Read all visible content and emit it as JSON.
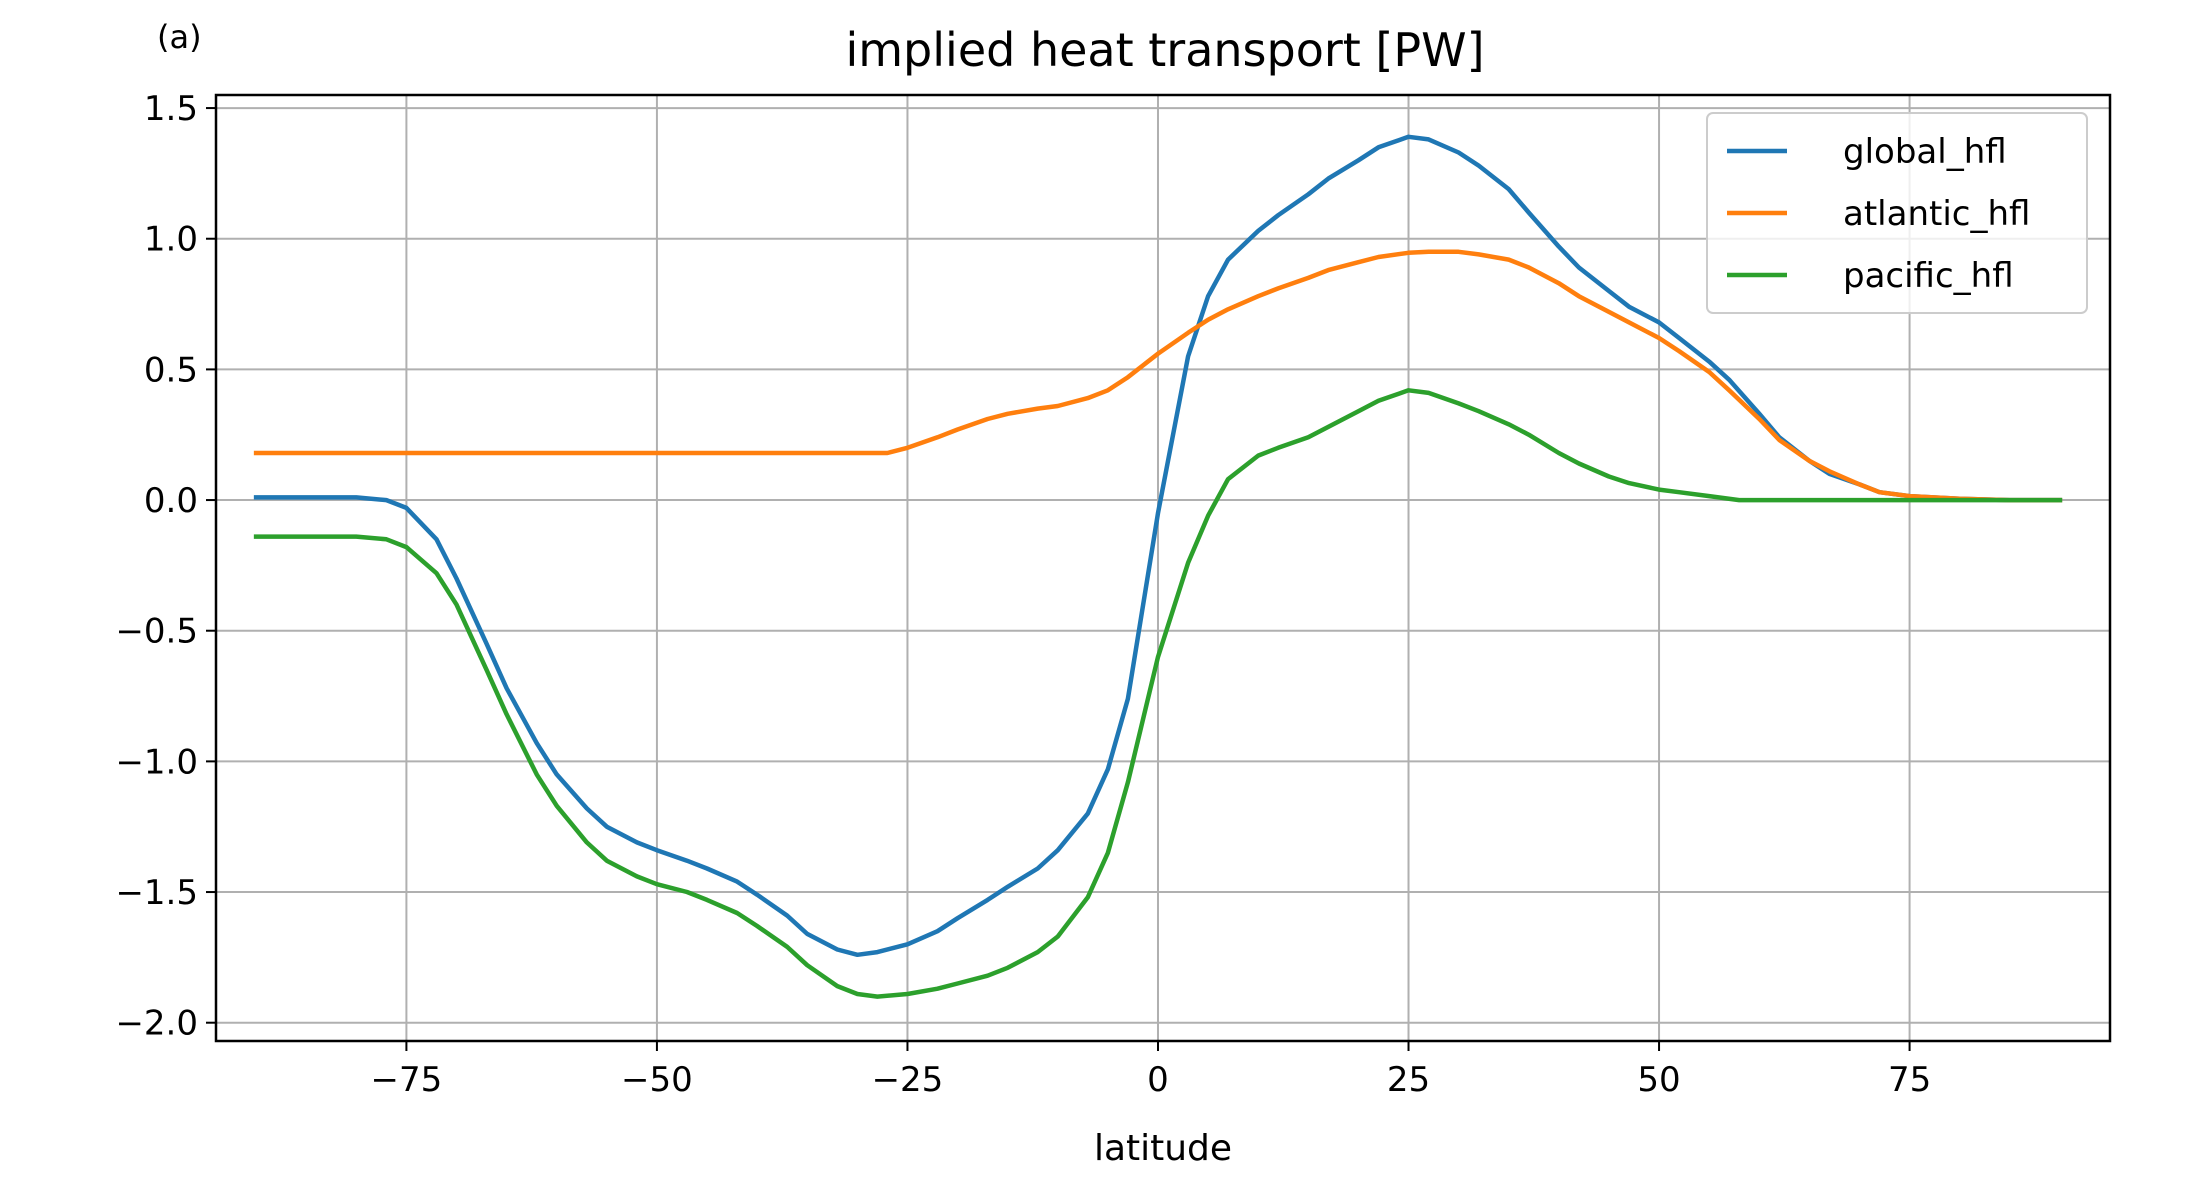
{
  "panel_label": "(a)",
  "chart_data": {
    "type": "line",
    "title": "implied heat transport [PW]",
    "xlabel": "latitude",
    "ylabel": "",
    "xlim": [
      -94,
      95
    ],
    "ylim": [
      -2.07,
      1.55
    ],
    "xticks": [
      -75,
      -50,
      -25,
      0,
      25,
      50,
      75
    ],
    "xtick_labels": [
      "−75",
      "−50",
      "−25",
      "0",
      "25",
      "50",
      "75"
    ],
    "yticks": [
      -2.0,
      -1.5,
      -1.0,
      -0.5,
      0.0,
      0.5,
      1.0,
      1.5
    ],
    "ytick_labels": [
      "−2.0",
      "−1.5",
      "−1.0",
      "−0.5",
      "0.0",
      "0.5",
      "1.0",
      "1.5"
    ],
    "grid": true,
    "legend_position": "top-right",
    "series": [
      {
        "name": "global_hfl",
        "color": "#1f77b4",
        "x": [
          -90,
          -85,
          -80,
          -77,
          -75,
          -72,
          -70,
          -67,
          -65,
          -62,
          -60,
          -57,
          -55,
          -52,
          -50,
          -47,
          -45,
          -42,
          -40,
          -37,
          -35,
          -32,
          -30,
          -28,
          -25,
          -22,
          -20,
          -17,
          -15,
          -12,
          -10,
          -7,
          -5,
          -3,
          0,
          3,
          5,
          7,
          10,
          12,
          15,
          17,
          20,
          22,
          25,
          27,
          30,
          32,
          35,
          37,
          40,
          42,
          45,
          47,
          50,
          52,
          55,
          57,
          60,
          62,
          65,
          67,
          70,
          72,
          75,
          80,
          85,
          90
        ],
        "y": [
          0.01,
          0.01,
          0.01,
          0.0,
          -0.03,
          -0.15,
          -0.3,
          -0.55,
          -0.72,
          -0.93,
          -1.05,
          -1.18,
          -1.25,
          -1.31,
          -1.34,
          -1.38,
          -1.41,
          -1.46,
          -1.51,
          -1.59,
          -1.66,
          -1.72,
          -1.74,
          -1.73,
          -1.7,
          -1.65,
          -1.6,
          -1.53,
          -1.48,
          -1.41,
          -1.34,
          -1.2,
          -1.03,
          -0.76,
          -0.05,
          0.55,
          0.78,
          0.92,
          1.03,
          1.09,
          1.17,
          1.23,
          1.3,
          1.35,
          1.39,
          1.38,
          1.33,
          1.28,
          1.19,
          1.1,
          0.97,
          0.89,
          0.8,
          0.74,
          0.68,
          0.62,
          0.53,
          0.46,
          0.33,
          0.24,
          0.15,
          0.1,
          0.06,
          0.03,
          0.015,
          0.005,
          0.0,
          0.0
        ]
      },
      {
        "name": "atlantic_hfl",
        "color": "#ff7f0e",
        "x": [
          -90,
          -80,
          -70,
          -60,
          -50,
          -40,
          -30,
          -27,
          -25,
          -22,
          -20,
          -17,
          -15,
          -12,
          -10,
          -7,
          -5,
          -3,
          0,
          3,
          5,
          7,
          10,
          12,
          15,
          17,
          20,
          22,
          25,
          27,
          30,
          32,
          35,
          37,
          40,
          42,
          45,
          47,
          50,
          52,
          55,
          57,
          60,
          62,
          65,
          67,
          70,
          72,
          75,
          80,
          85,
          90
        ],
        "y": [
          0.18,
          0.18,
          0.18,
          0.18,
          0.18,
          0.18,
          0.18,
          0.18,
          0.2,
          0.24,
          0.27,
          0.31,
          0.33,
          0.35,
          0.36,
          0.39,
          0.42,
          0.47,
          0.56,
          0.64,
          0.69,
          0.73,
          0.78,
          0.81,
          0.85,
          0.88,
          0.91,
          0.93,
          0.946,
          0.95,
          0.95,
          0.94,
          0.92,
          0.89,
          0.83,
          0.78,
          0.72,
          0.68,
          0.62,
          0.57,
          0.49,
          0.42,
          0.31,
          0.23,
          0.15,
          0.11,
          0.06,
          0.03,
          0.015,
          0.005,
          0.0,
          0.0
        ]
      },
      {
        "name": "pacific_hfl",
        "color": "#2ca02c",
        "x": [
          -90,
          -85,
          -80,
          -77,
          -75,
          -72,
          -70,
          -67,
          -65,
          -62,
          -60,
          -57,
          -55,
          -52,
          -50,
          -47,
          -45,
          -42,
          -40,
          -37,
          -35,
          -32,
          -30,
          -28,
          -25,
          -22,
          -20,
          -17,
          -15,
          -12,
          -10,
          -7,
          -5,
          -3,
          0,
          3,
          5,
          7,
          10,
          12,
          15,
          17,
          20,
          22,
          25,
          27,
          30,
          32,
          35,
          37,
          40,
          42,
          45,
          47,
          50,
          52,
          55,
          58,
          60,
          65,
          70,
          75,
          80,
          85,
          90
        ],
        "y": [
          -0.14,
          -0.14,
          -0.14,
          -0.15,
          -0.18,
          -0.28,
          -0.4,
          -0.65,
          -0.82,
          -1.05,
          -1.17,
          -1.31,
          -1.38,
          -1.44,
          -1.47,
          -1.5,
          -1.53,
          -1.58,
          -1.63,
          -1.71,
          -1.78,
          -1.86,
          -1.89,
          -1.9,
          -1.89,
          -1.87,
          -1.85,
          -1.82,
          -1.79,
          -1.73,
          -1.67,
          -1.52,
          -1.35,
          -1.08,
          -0.6,
          -0.24,
          -0.06,
          0.08,
          0.17,
          0.2,
          0.24,
          0.28,
          0.34,
          0.38,
          0.42,
          0.41,
          0.37,
          0.34,
          0.29,
          0.25,
          0.18,
          0.14,
          0.09,
          0.065,
          0.04,
          0.03,
          0.015,
          0.0,
          0.0,
          0.0,
          0.0,
          0.0,
          0.0,
          0.0,
          0.0
        ]
      }
    ]
  }
}
